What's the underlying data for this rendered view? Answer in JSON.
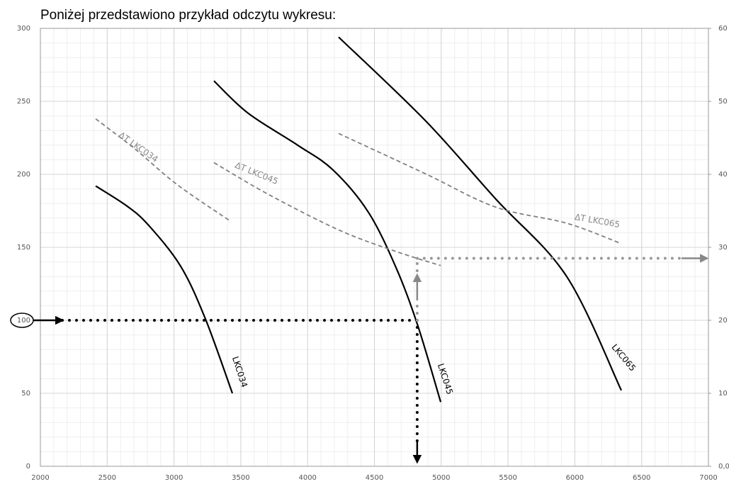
{
  "chart_data": {
    "type": "line",
    "title": "Poniżej przedstawiono przykład odczytu wykresu:",
    "xlim": [
      2000,
      7000
    ],
    "xticks": [
      2000,
      2500,
      3000,
      3500,
      4000,
      4500,
      5000,
      5500,
      6000,
      6500,
      7000
    ],
    "ylim": [
      0,
      300
    ],
    "yticks": [
      0,
      50,
      100,
      150,
      200,
      250,
      300
    ],
    "y2lim": [
      0,
      60
    ],
    "y2ticks": [
      {
        "value": 0,
        "label": "0,0"
      },
      10,
      20,
      30,
      40,
      50,
      60
    ],
    "grid": true,
    "series": [
      {
        "name": "LKC034",
        "color": "#000000",
        "dash": false,
        "x": [
          2414,
          2652,
          2811,
          3050,
          3235,
          3437
        ],
        "values": [
          192,
          178,
          165,
          137,
          101,
          50
        ]
      },
      {
        "name": "LKC045",
        "color": "#000000",
        "dash": false,
        "x": [
          3299,
          3553,
          3925,
          4190,
          4455,
          4667,
          4826,
          4996
        ],
        "values": [
          264,
          242,
          220,
          203,
          174,
          135,
          96,
          44
        ]
      },
      {
        "name": "LKC065",
        "color": "#000000",
        "dash": false,
        "x": [
          4232,
          4879,
          5409,
          5939,
          6348
        ],
        "values": [
          294,
          237,
          183,
          130,
          52
        ]
      },
      {
        "name": "ΔT LKC034",
        "color": "#808080",
        "dash": true,
        "axis": "y2",
        "x": [
          2414,
          2706,
          3023,
          3421
        ],
        "values": [
          47.6,
          43.5,
          38.6,
          33.6
        ]
      },
      {
        "name": "ΔT LKC045",
        "color": "#808080",
        "dash": true,
        "axis": "y2",
        "x": [
          3299,
          3712,
          4243,
          4667,
          4996
        ],
        "values": [
          41.6,
          37.2,
          32.3,
          29.4,
          27.5
        ]
      },
      {
        "name": "ΔT LKC065",
        "color": "#808080",
        "dash": true,
        "axis": "y2",
        "x": [
          4232,
          4879,
          5409,
          5939,
          6348
        ],
        "values": [
          45.6,
          40.1,
          35.5,
          33.3,
          30.5
        ]
      }
    ],
    "reading": {
      "x": 4820,
      "y": 100,
      "y2": 28.5
    }
  }
}
